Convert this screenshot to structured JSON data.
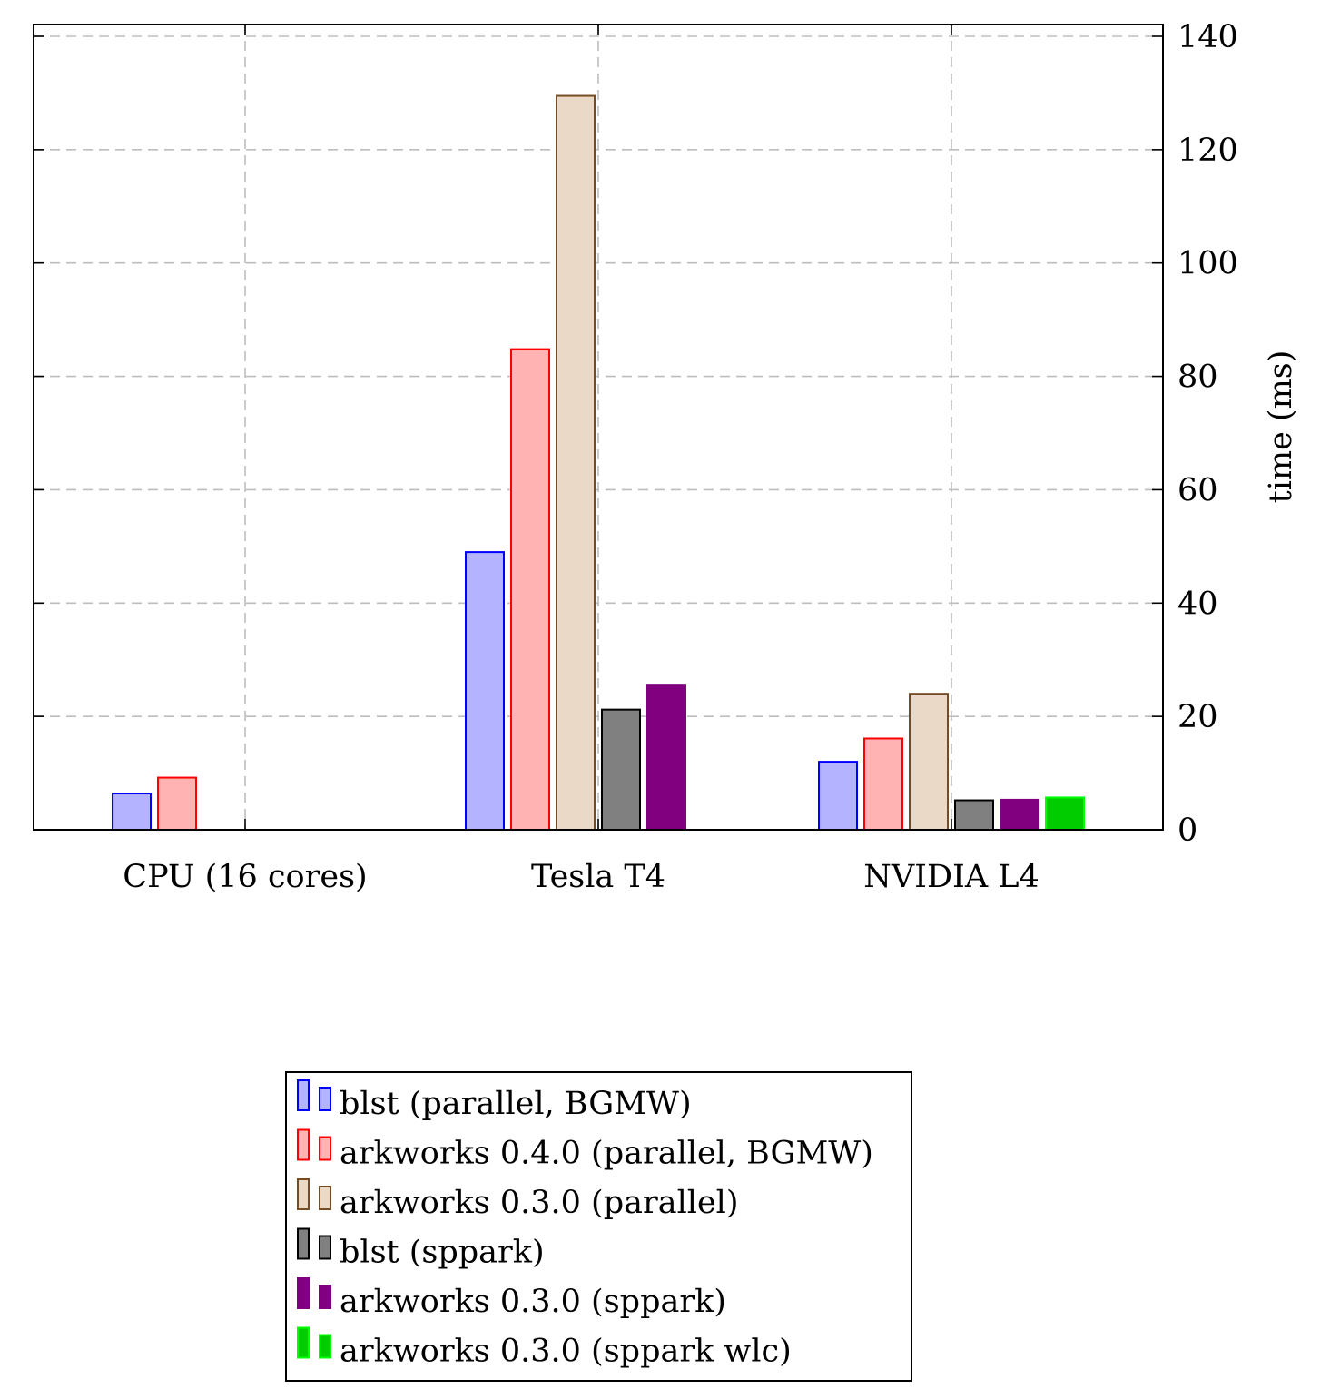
{
  "chart_data": {
    "type": "bar",
    "categories": [
      "CPU (16 cores)",
      "Tesla T4",
      "NVIDIA L4"
    ],
    "ylabel": "time (ms)",
    "xlabel": "",
    "title": "",
    "y_axis_side": "right",
    "ylim": [
      0,
      140
    ],
    "yticks": [
      0,
      20,
      40,
      60,
      80,
      100,
      120,
      140
    ],
    "grid": true,
    "legend_position": "bottom-center",
    "series": [
      {
        "name": "blst (parallel, BGMW)",
        "fill": "#b3b3ff",
        "stroke": "#0000ff",
        "values": [
          6.4,
          49.0,
          12.0
        ]
      },
      {
        "name": "arkworks 0.4.0 (parallel, BGMW)",
        "fill": "#ffb3b3",
        "stroke": "#ff0000",
        "values": [
          9.2,
          84.8,
          16.1
        ]
      },
      {
        "name": "arkworks 0.3.0 (parallel)",
        "fill": "#ead9c6",
        "stroke": "#754c24",
        "values": [
          null,
          129.5,
          24.0
        ]
      },
      {
        "name": "blst (sppark)",
        "fill": "#808080",
        "stroke": "#000000",
        "values": [
          null,
          21.2,
          5.2
        ]
      },
      {
        "name": "arkworks 0.3.0 (sppark)",
        "fill": "#800080",
        "stroke": "#800080",
        "values": [
          null,
          25.6,
          5.3
        ]
      },
      {
        "name": "arkworks 0.3.0 (sppark wlc)",
        "fill": "#00cc00",
        "stroke": "#00ff00",
        "values": [
          null,
          null,
          5.7
        ]
      }
    ]
  }
}
